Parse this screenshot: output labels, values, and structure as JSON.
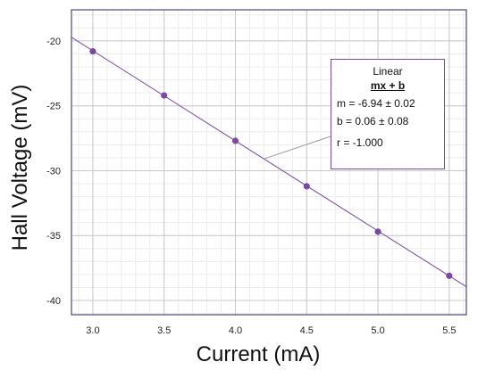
{
  "chart_data": {
    "type": "scatter",
    "xlabel": "Current (mA)",
    "ylabel": "Hall Voltage (mV)",
    "xlim": [
      2.85,
      5.62
    ],
    "ylim": [
      -41.1,
      -17.6
    ],
    "x_ticks": [
      "3.0",
      "3.5",
      "4.0",
      "4.5",
      "5.0",
      "5.5"
    ],
    "y_ticks": [
      "-20",
      "-25",
      "-30",
      "-35",
      "-40"
    ],
    "grid": true,
    "series": [
      {
        "x": [
          3.0,
          3.5,
          4.0,
          4.5,
          5.0,
          5.5
        ],
        "y": [
          -20.8,
          -24.2,
          -27.7,
          -31.2,
          -34.7,
          -38.1
        ],
        "color": "#7a4a9e"
      }
    ],
    "fit": {
      "slope": -6.94,
      "intercept": 0.06,
      "color": "#7a4a9e"
    },
    "annotation": {
      "title": "Linear",
      "equation": "mx + b",
      "m_line": "m = -6.94  ± 0.02",
      "b_line": "b  = 0.06  ± 0.08",
      "r_line": "r = -1.000"
    },
    "colors": {
      "accent": "#7a4a9e",
      "grid_major": "#c8c8c8",
      "grid_minor": "#ececec",
      "frame": "#4a4a7a"
    }
  }
}
